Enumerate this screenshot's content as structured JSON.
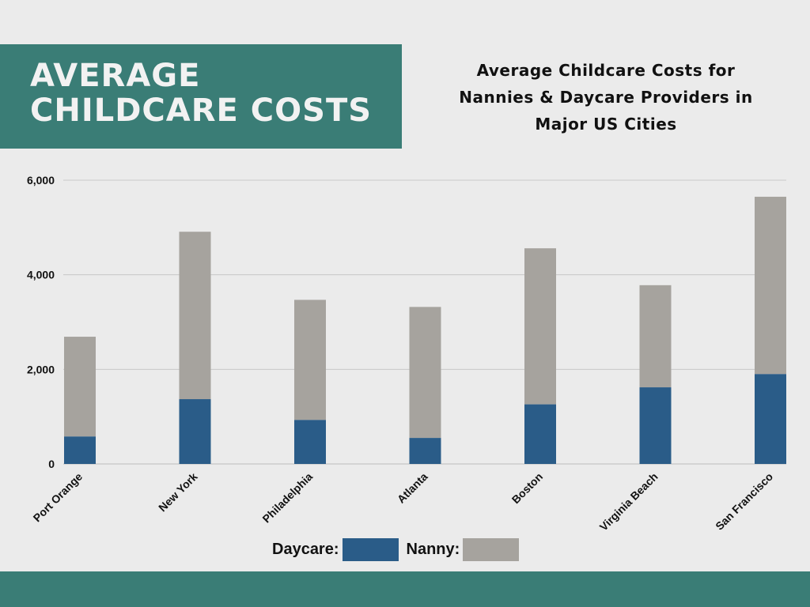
{
  "header": {
    "title_line1": "AVERAGE",
    "title_line2": "CHILDCARE COSTS"
  },
  "chart_title": {
    "line1": "Average Childcare Costs for",
    "line2": "Nannies & Daycare Providers in",
    "line3": "Major US Cities"
  },
  "colors": {
    "accent": "#3a7d76",
    "daycare": "#2a5c88",
    "nanny": "#a6a39e",
    "grid": "#c8c8c8"
  },
  "legend": {
    "daycare_label": "Daycare:",
    "nanny_label": "Nanny:"
  },
  "chart_data": {
    "type": "bar",
    "stacked": true,
    "title": "Average Childcare Costs for Nannies & Daycare Providers in Major US Cities",
    "categories": [
      "Port Orange",
      "New York",
      "Philadelphia",
      "Atlanta",
      "Boston",
      "Virginia Beach",
      "San Francisco"
    ],
    "series": [
      {
        "name": "Daycare",
        "values": [
          580,
          1370,
          930,
          550,
          1260,
          1620,
          1900
        ]
      },
      {
        "name": "Nanny",
        "values": [
          2110,
          3540,
          2540,
          2770,
          3300,
          2160,
          3750
        ]
      }
    ],
    "ylim": [
      0,
      6000
    ],
    "yticks": [
      0,
      2000,
      4000,
      6000
    ],
    "ytick_labels": [
      "0",
      "2,000",
      "4,000",
      "6,000"
    ],
    "xlabel": "",
    "ylabel": "",
    "grid": true,
    "legend_position": "bottom-center"
  }
}
